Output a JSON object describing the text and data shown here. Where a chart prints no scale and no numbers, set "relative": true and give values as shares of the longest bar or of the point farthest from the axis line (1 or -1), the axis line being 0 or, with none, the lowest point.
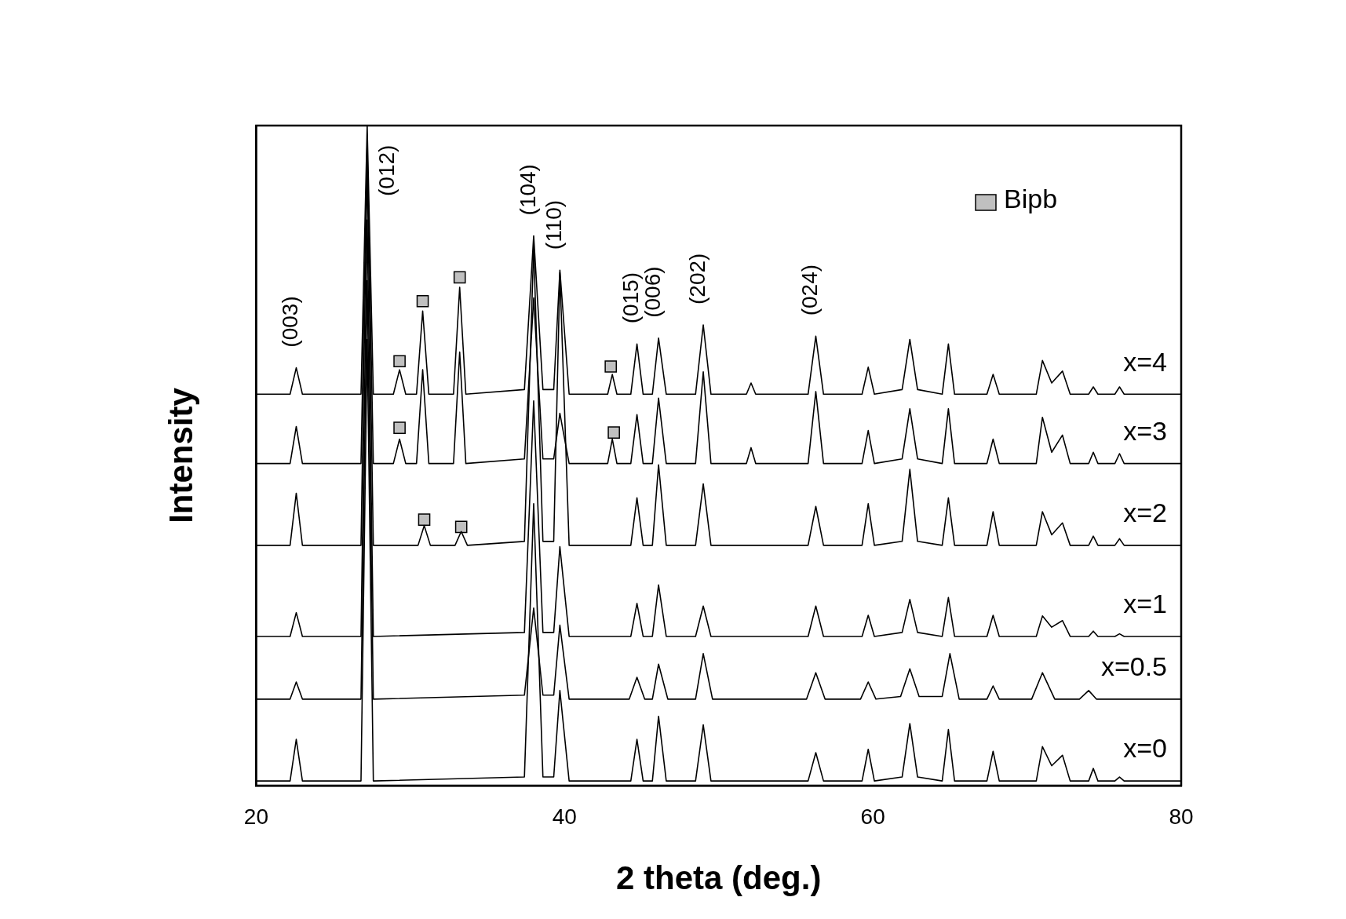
{
  "chart_data": {
    "type": "line",
    "xlabel": "2 theta (deg.)",
    "ylabel": "Intensity",
    "relative": true,
    "xlim": [
      20,
      80
    ],
    "xticks": [
      20,
      40,
      60,
      80
    ],
    "grid": false,
    "legend": "top right",
    "marker": "none",
    "line_style": "solid",
    "annotations": [
      {
        "text": "(003)",
        "x": 22.6,
        "y": 0.633
      },
      {
        "text": "(012)",
        "x": 27.2,
        "y": 1.0
      },
      {
        "text": "(104)",
        "x": 38,
        "y": 0.833
      },
      {
        "text": "(110)",
        "x": 39.7,
        "y": 0.781
      },
      {
        "text": "(015)",
        "x": 44.7,
        "y": 0.669
      },
      {
        "text": "(006)",
        "x": 46.1,
        "y": 0.678
      },
      {
        "text": "(202)",
        "x": 49,
        "y": 0.698
      },
      {
        "text": "(024)",
        "x": 56.3,
        "y": 0.681
      }
    ],
    "series": [
      {
        "name": "x=4",
        "color": "#000000",
        "x": [
          20,
          22.2,
          22.6,
          23,
          26.8,
          27.2,
          27.6,
          28.9,
          29.3,
          29.7,
          30.4,
          30.8,
          31.2,
          32.8,
          33.2,
          33.6,
          37.4,
          38,
          38.6,
          39.3,
          39.7,
          40.3,
          42.8,
          43.1,
          43.4,
          44.3,
          44.7,
          45.1,
          45.7,
          46.1,
          46.6,
          48.5,
          49,
          49.5,
          51.8,
          52.1,
          52.4,
          55.8,
          56.3,
          56.8,
          59.3,
          59.7,
          60.1,
          61.9,
          62.4,
          62.9,
          64.5,
          64.9,
          65.3,
          67.4,
          67.8,
          68.2,
          70.6,
          71,
          71.6,
          72.3,
          72.8,
          74,
          74.3,
          74.6,
          75.7,
          76,
          76.3,
          80
        ],
        "values": [
          0.593,
          0.593,
          0.633,
          0.593,
          0.593,
          1.0,
          0.593,
          0.593,
          0.63,
          0.593,
          0.593,
          0.719,
          0.593,
          0.593,
          0.755,
          0.593,
          0.6,
          0.833,
          0.6,
          0.6,
          0.781,
          0.593,
          0.593,
          0.623,
          0.593,
          0.593,
          0.669,
          0.593,
          0.593,
          0.678,
          0.593,
          0.593,
          0.698,
          0.593,
          0.593,
          0.61,
          0.593,
          0.593,
          0.681,
          0.593,
          0.593,
          0.634,
          0.593,
          0.6,
          0.676,
          0.6,
          0.593,
          0.669,
          0.593,
          0.593,
          0.623,
          0.593,
          0.593,
          0.644,
          0.61,
          0.628,
          0.593,
          0.593,
          0.604,
          0.593,
          0.593,
          0.604,
          0.593,
          0.593
        ]
      },
      {
        "name": "x=3",
        "color": "#000000",
        "x": [
          20,
          22.2,
          22.6,
          23,
          26.8,
          27.2,
          27.6,
          28.9,
          29.3,
          29.7,
          30.4,
          30.8,
          31.2,
          32.8,
          33.2,
          33.6,
          37.4,
          38,
          38.6,
          39.3,
          39.7,
          40.3,
          42.8,
          43.1,
          43.4,
          44.3,
          44.7,
          45.1,
          45.7,
          46.1,
          46.6,
          48.5,
          49,
          49.5,
          51.8,
          52.1,
          52.4,
          55.8,
          56.3,
          56.8,
          59.3,
          59.7,
          60.1,
          61.9,
          62.4,
          62.9,
          64.5,
          64.9,
          65.3,
          67.4,
          67.8,
          68.2,
          70.6,
          71,
          71.6,
          72.3,
          72.8,
          74,
          74.3,
          74.6,
          75.7,
          76,
          76.3,
          80
        ],
        "values": [
          0.488,
          0.488,
          0.544,
          0.488,
          0.488,
          0.971,
          0.488,
          0.488,
          0.525,
          0.488,
          0.488,
          0.63,
          0.488,
          0.488,
          0.657,
          0.488,
          0.495,
          0.739,
          0.495,
          0.495,
          0.564,
          0.488,
          0.488,
          0.525,
          0.488,
          0.488,
          0.562,
          0.488,
          0.488,
          0.587,
          0.488,
          0.488,
          0.627,
          0.488,
          0.488,
          0.512,
          0.488,
          0.488,
          0.597,
          0.488,
          0.488,
          0.538,
          0.488,
          0.495,
          0.571,
          0.495,
          0.488,
          0.571,
          0.488,
          0.488,
          0.525,
          0.488,
          0.488,
          0.558,
          0.505,
          0.531,
          0.488,
          0.488,
          0.505,
          0.488,
          0.488,
          0.503,
          0.488,
          0.488
        ]
      },
      {
        "name": "x=2",
        "color": "#000000",
        "x": [
          20,
          22.2,
          22.6,
          23,
          26.8,
          27.2,
          27.6,
          30.5,
          30.9,
          31.3,
          32.9,
          33.3,
          33.7,
          37.4,
          38,
          38.6,
          39.3,
          39.7,
          40.3,
          44.3,
          44.7,
          45.1,
          45.7,
          46.1,
          46.6,
          48.5,
          49,
          49.5,
          55.8,
          56.3,
          56.8,
          59.3,
          59.7,
          60.1,
          61.9,
          62.4,
          62.9,
          64.5,
          64.9,
          65.3,
          67.4,
          67.8,
          68.2,
          70.6,
          71,
          71.6,
          72.3,
          72.8,
          74,
          74.3,
          74.6,
          75.7,
          76,
          76.3,
          80
        ],
        "values": [
          0.364,
          0.364,
          0.443,
          0.364,
          0.364,
          0.938,
          0.364,
          0.364,
          0.394,
          0.364,
          0.364,
          0.385,
          0.364,
          0.37,
          0.816,
          0.37,
          0.37,
          0.777,
          0.364,
          0.364,
          0.436,
          0.364,
          0.364,
          0.486,
          0.364,
          0.364,
          0.457,
          0.364,
          0.364,
          0.423,
          0.364,
          0.364,
          0.427,
          0.364,
          0.37,
          0.479,
          0.37,
          0.364,
          0.436,
          0.364,
          0.364,
          0.415,
          0.364,
          0.364,
          0.415,
          0.38,
          0.398,
          0.364,
          0.364,
          0.378,
          0.364,
          0.364,
          0.374,
          0.364,
          0.364
        ]
      },
      {
        "name": "x=1",
        "color": "#000000",
        "x": [
          20,
          22.2,
          22.6,
          23,
          26.8,
          27.2,
          27.6,
          37.4,
          38,
          38.6,
          39.3,
          39.7,
          40.3,
          44.3,
          44.7,
          45.1,
          45.7,
          46.1,
          46.6,
          48.5,
          49,
          49.5,
          55.8,
          56.3,
          56.8,
          59.3,
          59.7,
          60.1,
          61.9,
          62.4,
          62.9,
          64.5,
          64.9,
          65.3,
          67.4,
          67.8,
          68.2,
          70.6,
          71,
          71.6,
          72.3,
          72.8,
          74,
          74.3,
          74.6,
          75.7,
          76,
          76.3,
          80
        ],
        "values": [
          0.226,
          0.226,
          0.262,
          0.226,
          0.226,
          0.857,
          0.226,
          0.232,
          0.583,
          0.232,
          0.232,
          0.362,
          0.226,
          0.226,
          0.276,
          0.226,
          0.226,
          0.304,
          0.226,
          0.226,
          0.272,
          0.226,
          0.226,
          0.272,
          0.226,
          0.226,
          0.258,
          0.226,
          0.232,
          0.282,
          0.232,
          0.226,
          0.285,
          0.226,
          0.226,
          0.258,
          0.226,
          0.226,
          0.257,
          0.24,
          0.25,
          0.226,
          0.226,
          0.234,
          0.226,
          0.226,
          0.23,
          0.226,
          0.226
        ]
      },
      {
        "name": "x=0.5",
        "color": "#000000",
        "x": [
          20,
          22.2,
          22.6,
          23,
          26.8,
          27.2,
          27.6,
          37.4,
          38,
          38.6,
          39.3,
          39.7,
          40.3,
          44.2,
          44.7,
          45.2,
          45.7,
          46.1,
          46.7,
          48.5,
          49,
          49.6,
          55.7,
          56.3,
          56.9,
          59.2,
          59.7,
          60.2,
          61.8,
          62.4,
          63,
          64.5,
          65,
          65.6,
          67.4,
          67.8,
          68.2,
          70.3,
          71,
          71.8,
          73.4,
          74,
          74.5,
          80
        ],
        "values": [
          0.131,
          0.131,
          0.157,
          0.131,
          0.131,
          0.765,
          0.131,
          0.137,
          0.269,
          0.137,
          0.137,
          0.243,
          0.131,
          0.131,
          0.164,
          0.131,
          0.131,
          0.184,
          0.131,
          0.131,
          0.2,
          0.131,
          0.131,
          0.171,
          0.131,
          0.131,
          0.157,
          0.131,
          0.135,
          0.177,
          0.135,
          0.135,
          0.2,
          0.131,
          0.131,
          0.151,
          0.131,
          0.131,
          0.171,
          0.131,
          0.131,
          0.144,
          0.131,
          0.131
        ]
      },
      {
        "name": "x=0",
        "color": "#000000",
        "x": [
          20,
          22.2,
          22.6,
          23,
          26.8,
          27.2,
          27.6,
          37.4,
          38,
          38.6,
          39.3,
          39.7,
          40.3,
          44.3,
          44.7,
          45.1,
          45.7,
          46.1,
          46.6,
          48.5,
          49,
          49.5,
          55.8,
          56.3,
          56.8,
          59.3,
          59.7,
          60.1,
          61.9,
          62.4,
          62.9,
          64.5,
          64.9,
          65.3,
          67.4,
          67.8,
          68.2,
          70.6,
          71,
          71.6,
          72.3,
          72.8,
          74,
          74.3,
          74.6,
          75.7,
          76,
          76.3,
          80
        ],
        "values": [
          0.007,
          0.007,
          0.07,
          0.007,
          0.007,
          0.676,
          0.007,
          0.013,
          0.427,
          0.013,
          0.013,
          0.144,
          0.007,
          0.007,
          0.07,
          0.007,
          0.007,
          0.105,
          0.007,
          0.007,
          0.092,
          0.007,
          0.007,
          0.05,
          0.007,
          0.007,
          0.055,
          0.007,
          0.013,
          0.094,
          0.013,
          0.007,
          0.085,
          0.007,
          0.007,
          0.052,
          0.007,
          0.007,
          0.059,
          0.03,
          0.046,
          0.007,
          0.007,
          0.026,
          0.007,
          0.007,
          0.013,
          0.007,
          0.007
        ]
      },
      {
        "name": "Bipb",
        "type": "scatter",
        "marker": "square",
        "color": "#c0c0c0",
        "x": [
          29.3,
          30.8,
          33.2,
          43.0,
          29.3,
          43.2,
          30.9,
          33.3
        ],
        "values": [
          0.643,
          0.734,
          0.77,
          0.635,
          0.542,
          0.535,
          0.403,
          0.392
        ]
      }
    ]
  }
}
